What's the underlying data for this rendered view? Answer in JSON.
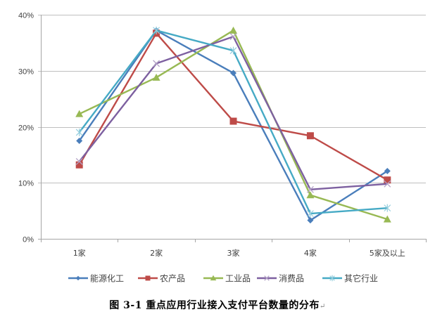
{
  "chart_data": {
    "type": "line",
    "title": "图 3-1  重点应用行业接入支付平台数量的分布",
    "xlabel": "",
    "ylabel": "",
    "categories": [
      "1家",
      "2家",
      "3家",
      "4家",
      "5家及以上"
    ],
    "y_ticks": [
      "0%",
      "10%",
      "20%",
      "30%",
      "40%"
    ],
    "ylim": [
      0,
      40
    ],
    "grid": true,
    "legend_position": "bottom",
    "series": [
      {
        "name": "能源化工",
        "color": "#4a7ebb",
        "marker": "diamond",
        "values": [
          17.5,
          37.2,
          29.6,
          3.3,
          12.1
        ]
      },
      {
        "name": "农产品",
        "color": "#be4b48",
        "marker": "square",
        "values": [
          13.2,
          36.7,
          21.0,
          18.4,
          10.5
        ]
      },
      {
        "name": "工业品",
        "color": "#98b954",
        "marker": "triangle",
        "values": [
          22.3,
          28.8,
          37.2,
          7.8,
          3.5
        ]
      },
      {
        "name": "消费品",
        "color": "#7d60a0",
        "marker": "x",
        "values": [
          13.8,
          31.3,
          36.1,
          8.8,
          9.8
        ]
      },
      {
        "name": "其它行业",
        "color": "#46aac5",
        "marker": "star",
        "values": [
          19.0,
          37.2,
          33.6,
          4.5,
          5.5
        ]
      }
    ]
  },
  "caption": {
    "text": "图 3-1  重点应用行业接入支付平台数量的分布",
    "return_mark": "↵"
  },
  "colors": {
    "gridline": "#bfbfbf",
    "axis": "#a6a6a6",
    "text": "#404040"
  }
}
